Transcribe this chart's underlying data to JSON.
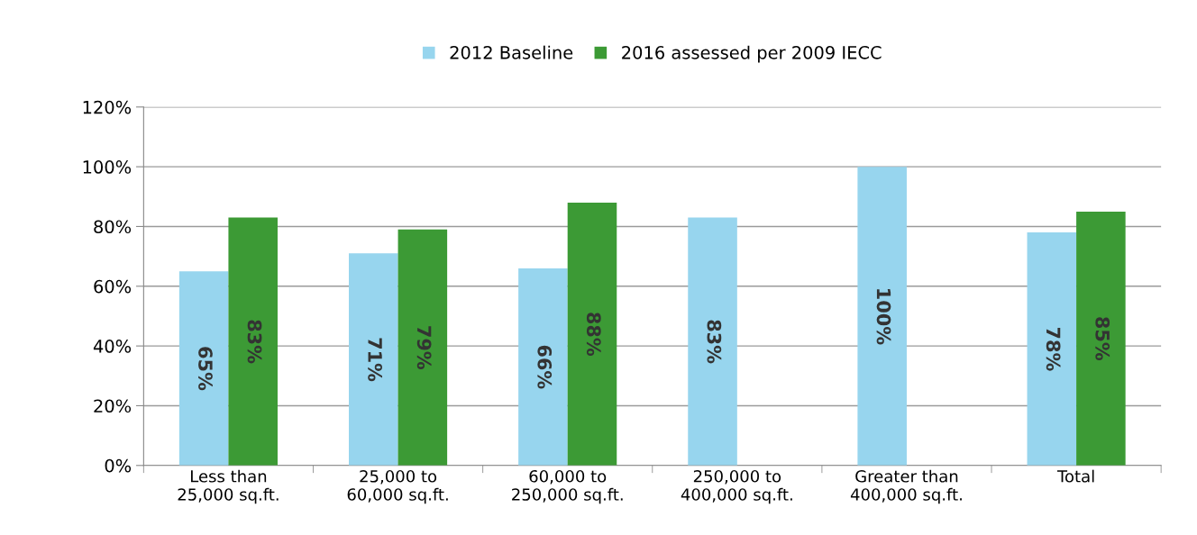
{
  "chart_data": {
    "type": "bar",
    "categories": [
      "Less than\n25,000 sq.ft.",
      "25,000 to\n60,000 sq.ft.",
      "60,000 to\n250,000 sq.ft.",
      "250,000 to\n400,000 sq.ft.",
      "Greater than\n400,000 sq.ft.",
      "Total"
    ],
    "series": [
      {
        "name": "2012 Baseline",
        "color": "#97d5ee",
        "values": [
          65,
          71,
          66,
          83,
          100,
          78
        ],
        "value_labels": [
          "65%",
          "71%",
          "66%",
          "83%",
          "100%",
          "78%"
        ]
      },
      {
        "name": "2016 assessed per 2009 IECC",
        "color": "#3c9a35",
        "values": [
          83,
          79,
          88,
          null,
          null,
          85
        ],
        "value_labels": [
          "83%",
          "79%",
          "88%",
          null,
          null,
          "85%"
        ]
      }
    ],
    "ylim": [
      0,
      120
    ],
    "yticks": [
      {
        "value": 0,
        "label": "0%"
      },
      {
        "value": 20,
        "label": "20%"
      },
      {
        "value": 40,
        "label": "40%"
      },
      {
        "value": 60,
        "label": "60%"
      },
      {
        "value": 80,
        "label": "80%"
      },
      {
        "value": 100,
        "label": "100%"
      },
      {
        "value": 120,
        "label": "120%"
      }
    ],
    "grid": "y",
    "legend": "top"
  }
}
